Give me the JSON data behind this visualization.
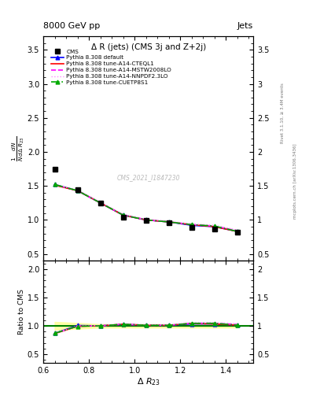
{
  "title": "Δ R (jets) (CMS 3j and Z+2j)",
  "header_left": "8000 GeV pp",
  "header_right": "Jets",
  "ylabel_main": "$\\frac{1}{N}\\frac{dN}{d\\Delta\\ R_{23}}$",
  "ylabel_ratio": "Ratio to CMS",
  "xlabel": "$\\Delta\\ R_{23}$",
  "watermark": "CMS_2021_I1847230",
  "right_label": "mcplots.cern.ch [arXiv:1306.3436]",
  "rivet_label": "Rivet 3.1.10, ≥ 3.4M events",
  "x_cms": [
    0.65,
    0.75,
    0.85,
    0.95,
    1.05,
    1.15,
    1.25,
    1.35,
    1.45
  ],
  "y_cms": [
    1.75,
    1.44,
    1.25,
    1.04,
    0.99,
    0.96,
    0.89,
    0.87,
    0.82
  ],
  "x_py": [
    0.65,
    0.75,
    0.85,
    0.95,
    1.05,
    1.15,
    1.25,
    1.35,
    1.45
  ],
  "y_default": [
    1.52,
    1.43,
    1.25,
    1.07,
    1.0,
    0.97,
    0.92,
    0.9,
    0.83
  ],
  "y_cteql1": [
    1.51,
    1.43,
    1.25,
    1.07,
    1.0,
    0.97,
    0.93,
    0.9,
    0.83
  ],
  "y_mstw": [
    1.52,
    1.43,
    1.25,
    1.07,
    1.0,
    0.97,
    0.93,
    0.91,
    0.84
  ],
  "y_nnpdf": [
    1.52,
    1.44,
    1.26,
    1.08,
    1.01,
    0.98,
    0.94,
    0.92,
    0.85
  ],
  "y_cuetp8s1": [
    1.52,
    1.43,
    1.25,
    1.07,
    1.0,
    0.97,
    0.93,
    0.91,
    0.83
  ],
  "ratio_default": [
    0.869,
    1.007,
    1.0,
    1.027,
    1.01,
    1.01,
    1.034,
    1.034,
    1.012
  ],
  "ratio_cteql1": [
    0.863,
    0.993,
    1.0,
    1.029,
    1.01,
    1.01,
    1.045,
    1.034,
    1.012
  ],
  "ratio_mstw": [
    0.869,
    0.993,
    1.0,
    1.029,
    1.01,
    1.01,
    1.045,
    1.046,
    1.024
  ],
  "ratio_nnpdf": [
    0.869,
    1.0,
    1.008,
    1.038,
    1.02,
    1.021,
    1.056,
    1.057,
    1.037
  ],
  "ratio_cuetp8s1": [
    0.869,
    0.993,
    1.0,
    1.029,
    1.01,
    1.01,
    1.045,
    1.046,
    1.012
  ],
  "color_default": "#0000ff",
  "color_cteql1": "#ff0000",
  "color_mstw": "#ff00ff",
  "color_nnpdf": "#ff88ff",
  "color_cuetp8s1": "#00aa00",
  "ylim_main": [
    0.4,
    3.7
  ],
  "ylim_ratio": [
    0.35,
    2.15
  ],
  "xlim": [
    0.6,
    1.52
  ],
  "cms_error_band_color": "#ffff99",
  "cms_error_band_alpha": 0.85,
  "cms_error_y_low": [
    0.93,
    0.95,
    0.97,
    0.97,
    0.97,
    0.97,
    0.97,
    0.97,
    0.97
  ],
  "cms_error_y_high": [
    1.07,
    1.05,
    1.03,
    1.03,
    1.03,
    1.03,
    1.03,
    1.03,
    1.03
  ]
}
